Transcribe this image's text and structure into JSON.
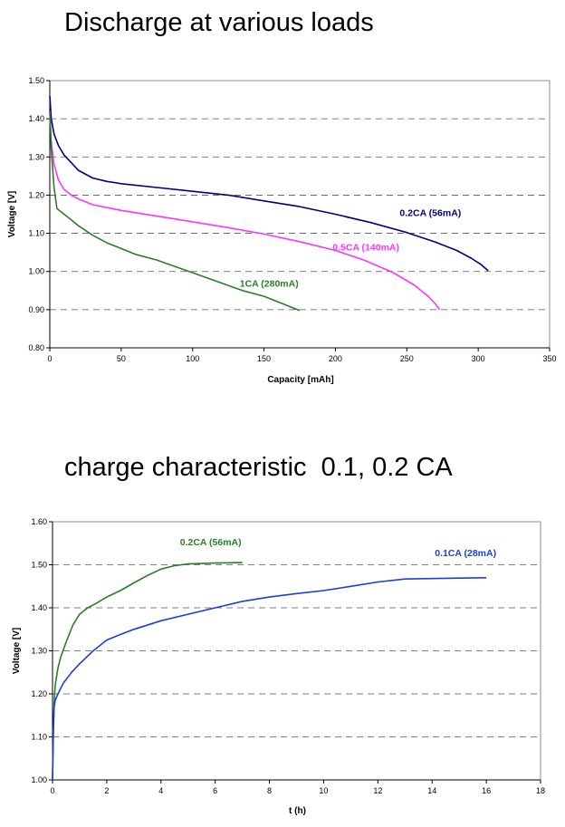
{
  "chart_data": [
    {
      "type": "line",
      "title": "Discharge at various loads",
      "xlabel": "Capacity [mAh]",
      "ylabel": "Voltage [V]",
      "xlim": [
        0,
        350
      ],
      "ylim": [
        0.8,
        1.5
      ],
      "xticks": [
        "0",
        "50",
        "100",
        "150",
        "200",
        "250",
        "300",
        "350"
      ],
      "yticks": [
        "0.80",
        "0.90",
        "1.00",
        "1.10",
        "1.20",
        "1.30",
        "1.40",
        "1.50"
      ],
      "grid": "horizontal-dashed",
      "series": [
        {
          "name": "0.2CA (56mA)",
          "color": "#000080",
          "label_at": [
            245,
            1.145
          ],
          "points": [
            [
              0,
              1.46
            ],
            [
              1,
              1.4
            ],
            [
              3,
              1.36
            ],
            [
              6,
              1.33
            ],
            [
              10,
              1.305
            ],
            [
              15,
              1.285
            ],
            [
              20,
              1.265
            ],
            [
              30,
              1.245
            ],
            [
              40,
              1.236
            ],
            [
              50,
              1.23
            ],
            [
              75,
              1.22
            ],
            [
              100,
              1.21
            ],
            [
              125,
              1.2
            ],
            [
              150,
              1.185
            ],
            [
              175,
              1.17
            ],
            [
              200,
              1.15
            ],
            [
              225,
              1.128
            ],
            [
              250,
              1.102
            ],
            [
              270,
              1.077
            ],
            [
              285,
              1.055
            ],
            [
              295,
              1.035
            ],
            [
              302,
              1.018
            ],
            [
              307,
              1.002
            ]
          ]
        },
        {
          "name": "0.5CA (140mA)",
          "color": "#ff33ff",
          "label_at": [
            198,
            1.055
          ],
          "points": [
            [
              0,
              1.42
            ],
            [
              1,
              1.34
            ],
            [
              3,
              1.28
            ],
            [
              6,
              1.24
            ],
            [
              10,
              1.215
            ],
            [
              15,
              1.2
            ],
            [
              20,
              1.19
            ],
            [
              30,
              1.175
            ],
            [
              50,
              1.16
            ],
            [
              75,
              1.145
            ],
            [
              100,
              1.13
            ],
            [
              125,
              1.115
            ],
            [
              150,
              1.098
            ],
            [
              175,
              1.078
            ],
            [
              200,
              1.055
            ],
            [
              220,
              1.03
            ],
            [
              240,
              0.998
            ],
            [
              255,
              0.965
            ],
            [
              265,
              0.935
            ],
            [
              270,
              0.915
            ],
            [
              273,
              0.9
            ]
          ]
        },
        {
          "name": "1CA (280mA)",
          "color": "#2a7e2a",
          "label_at": [
            133,
            0.96
          ],
          "points": [
            [
              0,
              1.42
            ],
            [
              1,
              1.32
            ],
            [
              3,
              1.22
            ],
            [
              5,
              1.165
            ],
            [
              10,
              1.15
            ],
            [
              15,
              1.135
            ],
            [
              20,
              1.12
            ],
            [
              30,
              1.095
            ],
            [
              40,
              1.075
            ],
            [
              50,
              1.06
            ],
            [
              60,
              1.045
            ],
            [
              75,
              1.03
            ],
            [
              90,
              1.01
            ],
            [
              105,
              0.99
            ],
            [
              120,
              0.97
            ],
            [
              135,
              0.95
            ],
            [
              150,
              0.935
            ],
            [
              160,
              0.92
            ],
            [
              170,
              0.905
            ],
            [
              175,
              0.898
            ]
          ]
        }
      ]
    },
    {
      "type": "line",
      "title": "charge characteristic  0.1, 0.2 CA",
      "xlabel": "t (h)",
      "ylabel": "Voltage [V]",
      "xlim": [
        0,
        18
      ],
      "ylim": [
        1.0,
        1.6
      ],
      "xticks": [
        "0",
        "2",
        "4",
        "6",
        "8",
        "10",
        "12",
        "14",
        "16",
        "18"
      ],
      "yticks": [
        "1.00",
        "1.10",
        "1.20",
        "1.30",
        "1.40",
        "1.50",
        "1.60"
      ],
      "grid": "horizontal-dashed",
      "series": [
        {
          "name": "0.2CA (56mA)",
          "color": "#2a7e2a",
          "label_at": [
            4.7,
            1.545
          ],
          "points": [
            [
              0,
              1.0
            ],
            [
              0.03,
              1.1
            ],
            [
              0.06,
              1.18
            ],
            [
              0.1,
              1.22
            ],
            [
              0.2,
              1.26
            ],
            [
              0.3,
              1.285
            ],
            [
              0.5,
              1.32
            ],
            [
              0.75,
              1.36
            ],
            [
              1.0,
              1.385
            ],
            [
              1.3,
              1.4
            ],
            [
              1.6,
              1.41
            ],
            [
              2.0,
              1.425
            ],
            [
              2.5,
              1.44
            ],
            [
              3.0,
              1.458
            ],
            [
              3.5,
              1.475
            ],
            [
              4.0,
              1.49
            ],
            [
              4.5,
              1.498
            ],
            [
              5.0,
              1.502
            ],
            [
              6.0,
              1.504
            ],
            [
              7.0,
              1.505
            ]
          ]
        },
        {
          "name": "0.1CA (28mA)",
          "color": "#1a3ee0",
          "label_at": [
            14.1,
            1.52
          ],
          "points": [
            [
              0,
              1.0
            ],
            [
              0.03,
              1.12
            ],
            [
              0.06,
              1.17
            ],
            [
              0.1,
              1.185
            ],
            [
              0.2,
              1.2
            ],
            [
              0.4,
              1.225
            ],
            [
              0.7,
              1.25
            ],
            [
              1.0,
              1.27
            ],
            [
              1.5,
              1.3
            ],
            [
              2.0,
              1.325
            ],
            [
              2.5,
              1.338
            ],
            [
              3.0,
              1.35
            ],
            [
              4.0,
              1.37
            ],
            [
              5.0,
              1.385
            ],
            [
              6.0,
              1.4
            ],
            [
              7.0,
              1.415
            ],
            [
              8.0,
              1.425
            ],
            [
              9.0,
              1.433
            ],
            [
              10.0,
              1.44
            ],
            [
              11.0,
              1.45
            ],
            [
              12.0,
              1.46
            ],
            [
              13.0,
              1.467
            ],
            [
              14.0,
              1.468
            ],
            [
              15.0,
              1.469
            ],
            [
              16.0,
              1.47
            ]
          ]
        }
      ]
    }
  ]
}
